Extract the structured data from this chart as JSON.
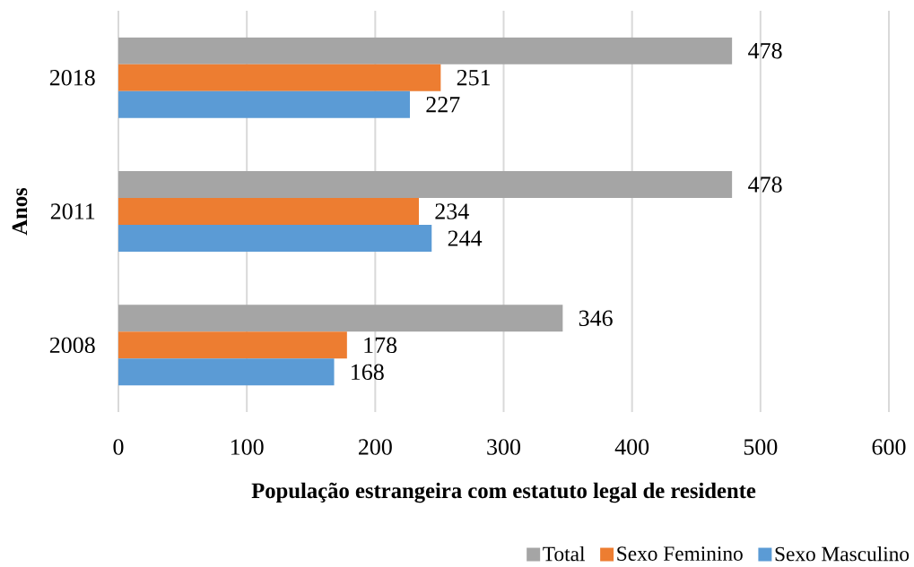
{
  "chart_data": {
    "type": "bar",
    "orientation": "horizontal",
    "xlabel": "População estrangeira com estatuto legal de residente",
    "ylabel": "Anos",
    "categories": [
      "2018",
      "2011",
      "2008"
    ],
    "series": [
      {
        "name": "Total",
        "color": "#a5a5a5",
        "values": [
          478,
          478,
          346
        ]
      },
      {
        "name": "Sexo Feminino",
        "color": "#ed7d31",
        "values": [
          251,
          234,
          178
        ]
      },
      {
        "name": "Sexo Masculino",
        "color": "#5b9bd5",
        "values": [
          227,
          244,
          168
        ]
      }
    ],
    "xlim": [
      0,
      600
    ],
    "xticks": [
      0,
      100,
      200,
      300,
      400,
      500,
      600
    ],
    "grid": "x",
    "legend": "bottom right",
    "data_labels": true
  }
}
